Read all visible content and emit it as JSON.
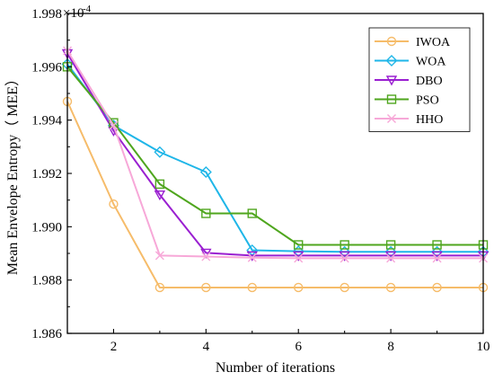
{
  "chart_data": {
    "type": "line",
    "xlabel": "Number of iterations",
    "ylabel": "Mean Envelope Entropy（ MEE）",
    "y_multiplier": "×10",
    "y_exponent": "-4",
    "xlim": [
      1,
      10
    ],
    "ylim": [
      1.986,
      1.998
    ],
    "xticks": [
      2,
      4,
      6,
      8,
      10
    ],
    "yticks": [
      1.986,
      1.988,
      1.99,
      1.992,
      1.994,
      1.996,
      1.998
    ],
    "ytick_labels": [
      "1.986",
      "1.988",
      "1.990",
      "1.992",
      "1.994",
      "1.996",
      "1.998"
    ],
    "xtick_labels": [
      "2",
      "4",
      "6",
      "8",
      "10"
    ],
    "grid": false,
    "legend_position": "top-right",
    "x": [
      1,
      2,
      3,
      4,
      5,
      6,
      7,
      8,
      9,
      10
    ],
    "series": [
      {
        "name": "IWOA",
        "color": "#f6bc6a",
        "marker": "circle",
        "values": [
          1.9947,
          1.99085,
          1.98772,
          1.98772,
          1.98772,
          1.98772,
          1.98772,
          1.98772,
          1.98772,
          1.98772
        ]
      },
      {
        "name": "WOA",
        "color": "#1fb6e8",
        "marker": "diamond",
        "values": [
          1.9961,
          1.9938,
          1.9928,
          1.99205,
          1.98912,
          1.98908,
          1.98906,
          1.98906,
          1.98906,
          1.98906
        ]
      },
      {
        "name": "DBO",
        "color": "#9a1fd1",
        "marker": "triangle-down",
        "values": [
          1.9965,
          1.9936,
          1.9912,
          1.98902,
          1.98892,
          1.98892,
          1.98892,
          1.98892,
          1.98892,
          1.98892
        ]
      },
      {
        "name": "PSO",
        "color": "#4fa61e",
        "marker": "square",
        "values": [
          1.996,
          1.9939,
          1.9916,
          1.9905,
          1.9905,
          1.98932,
          1.98932,
          1.98932,
          1.98932,
          1.98932
        ]
      },
      {
        "name": "HHO",
        "color": "#f7a8d8",
        "marker": "x",
        "values": [
          1.9966,
          1.9938,
          1.98892,
          1.98888,
          1.98884,
          1.98882,
          1.98882,
          1.98882,
          1.98882,
          1.98882
        ]
      }
    ]
  }
}
